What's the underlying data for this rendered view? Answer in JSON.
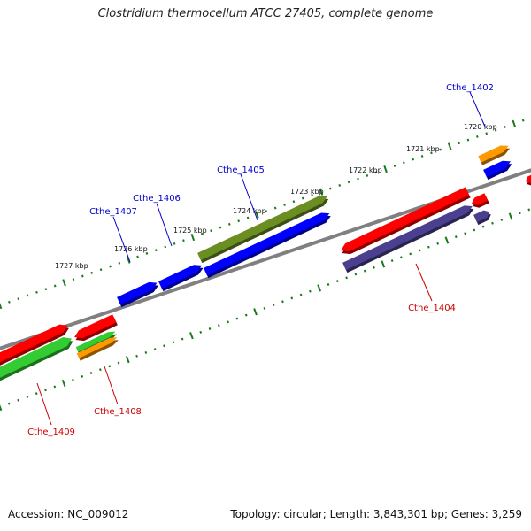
{
  "title": "Clostridium thermocellum ATCC 27405, complete genome",
  "footer": {
    "accession": "Accession: NC_009012",
    "summary": "Topology: circular; Length: 3,843,301 bp; Genes: 3,259"
  },
  "colors": {
    "backbone": "#808080",
    "ticks": "#1a7a1a",
    "forward_cds": "#ff0000",
    "reverse_cds": "#0000ff",
    "label_forward": "#cc0000",
    "label_reverse": "#0000cc",
    "green_feature": "#33cc33",
    "olive_feature": "#6b8e23",
    "orange_feature": "#ff9900",
    "purple_feature": "#4b3f8f"
  },
  "ruler_labels": [
    "1720 kbp",
    "1721 kbp",
    "1722 kbp",
    "1723 kbp",
    "1724 kbp",
    "1725 kbp",
    "1726 kbp",
    "1727 kbp"
  ],
  "gene_labels": [
    "Cthe_1402",
    "Cthe_1404",
    "Cthe_1405",
    "Cthe_1406",
    "Cthe_1407",
    "Cthe_1408",
    "Cthe_1409"
  ]
}
